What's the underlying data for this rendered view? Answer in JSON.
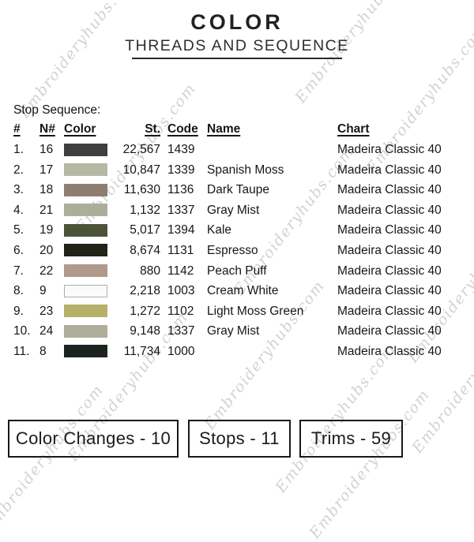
{
  "watermark": {
    "text": "Embroideryhubs.com"
  },
  "header": {
    "title": "COLOR",
    "subtitle": "THREADS AND SEQUENCE"
  },
  "section_label": "Stop Sequence:",
  "table": {
    "columns": [
      "#",
      "N#",
      "Color",
      "St.",
      "Code",
      "Name",
      "Chart"
    ],
    "rows": [
      {
        "index": "1.",
        "n": "16",
        "color_hex": "#3f3f41",
        "st": "22,567",
        "code": "1439",
        "name": "",
        "chart": "Madeira Classic 40"
      },
      {
        "index": "2.",
        "n": "17",
        "color_hex": "#b5b8a3",
        "st": "10,847",
        "code": "1339",
        "name": "Spanish Moss",
        "chart": "Madeira Classic 40"
      },
      {
        "index": "3.",
        "n": "18",
        "color_hex": "#8e7e71",
        "st": "11,630",
        "code": "1136",
        "name": "Dark Taupe",
        "chart": "Madeira Classic 40"
      },
      {
        "index": "4.",
        "n": "21",
        "color_hex": "#abaf99",
        "st": "1,132",
        "code": "1337",
        "name": "Gray Mist",
        "chart": "Madeira Classic 40"
      },
      {
        "index": "5.",
        "n": "19",
        "color_hex": "#4c5338",
        "st": "5,017",
        "code": "1394",
        "name": "Kale",
        "chart": "Madeira Classic 40"
      },
      {
        "index": "6.",
        "n": "20",
        "color_hex": "#202317",
        "st": "8,674",
        "code": "1131",
        "name": "Espresso",
        "chart": "Madeira Classic 40"
      },
      {
        "index": "7.",
        "n": "22",
        "color_hex": "#b1998c",
        "st": "880",
        "code": "1142",
        "name": "Peach Puff",
        "chart": "Madeira Classic 40"
      },
      {
        "index": "8.",
        "n": "9",
        "color_hex": "#fbfcf9",
        "st": "2,218",
        "code": "1003",
        "name": "Cream White",
        "chart": "Madeira Classic 40"
      },
      {
        "index": "9.",
        "n": "23",
        "color_hex": "#b5b169",
        "st": "1,272",
        "code": "1102",
        "name": "Light Moss Green",
        "chart": "Madeira Classic 40"
      },
      {
        "index": "10.",
        "n": "24",
        "color_hex": "#aeae9a",
        "st": "9,148",
        "code": "1337",
        "name": "Gray Mist",
        "chart": "Madeira Classic 40"
      },
      {
        "index": "11.",
        "n": "8",
        "color_hex": "#1d2420",
        "st": "11,734",
        "code": "1000",
        "name": "",
        "chart": "Madeira Classic 40"
      }
    ]
  },
  "footer": {
    "boxes": [
      {
        "label": "Color Changes - 10"
      },
      {
        "label": "Stops -  11"
      },
      {
        "label": "Trims - 59"
      }
    ]
  }
}
